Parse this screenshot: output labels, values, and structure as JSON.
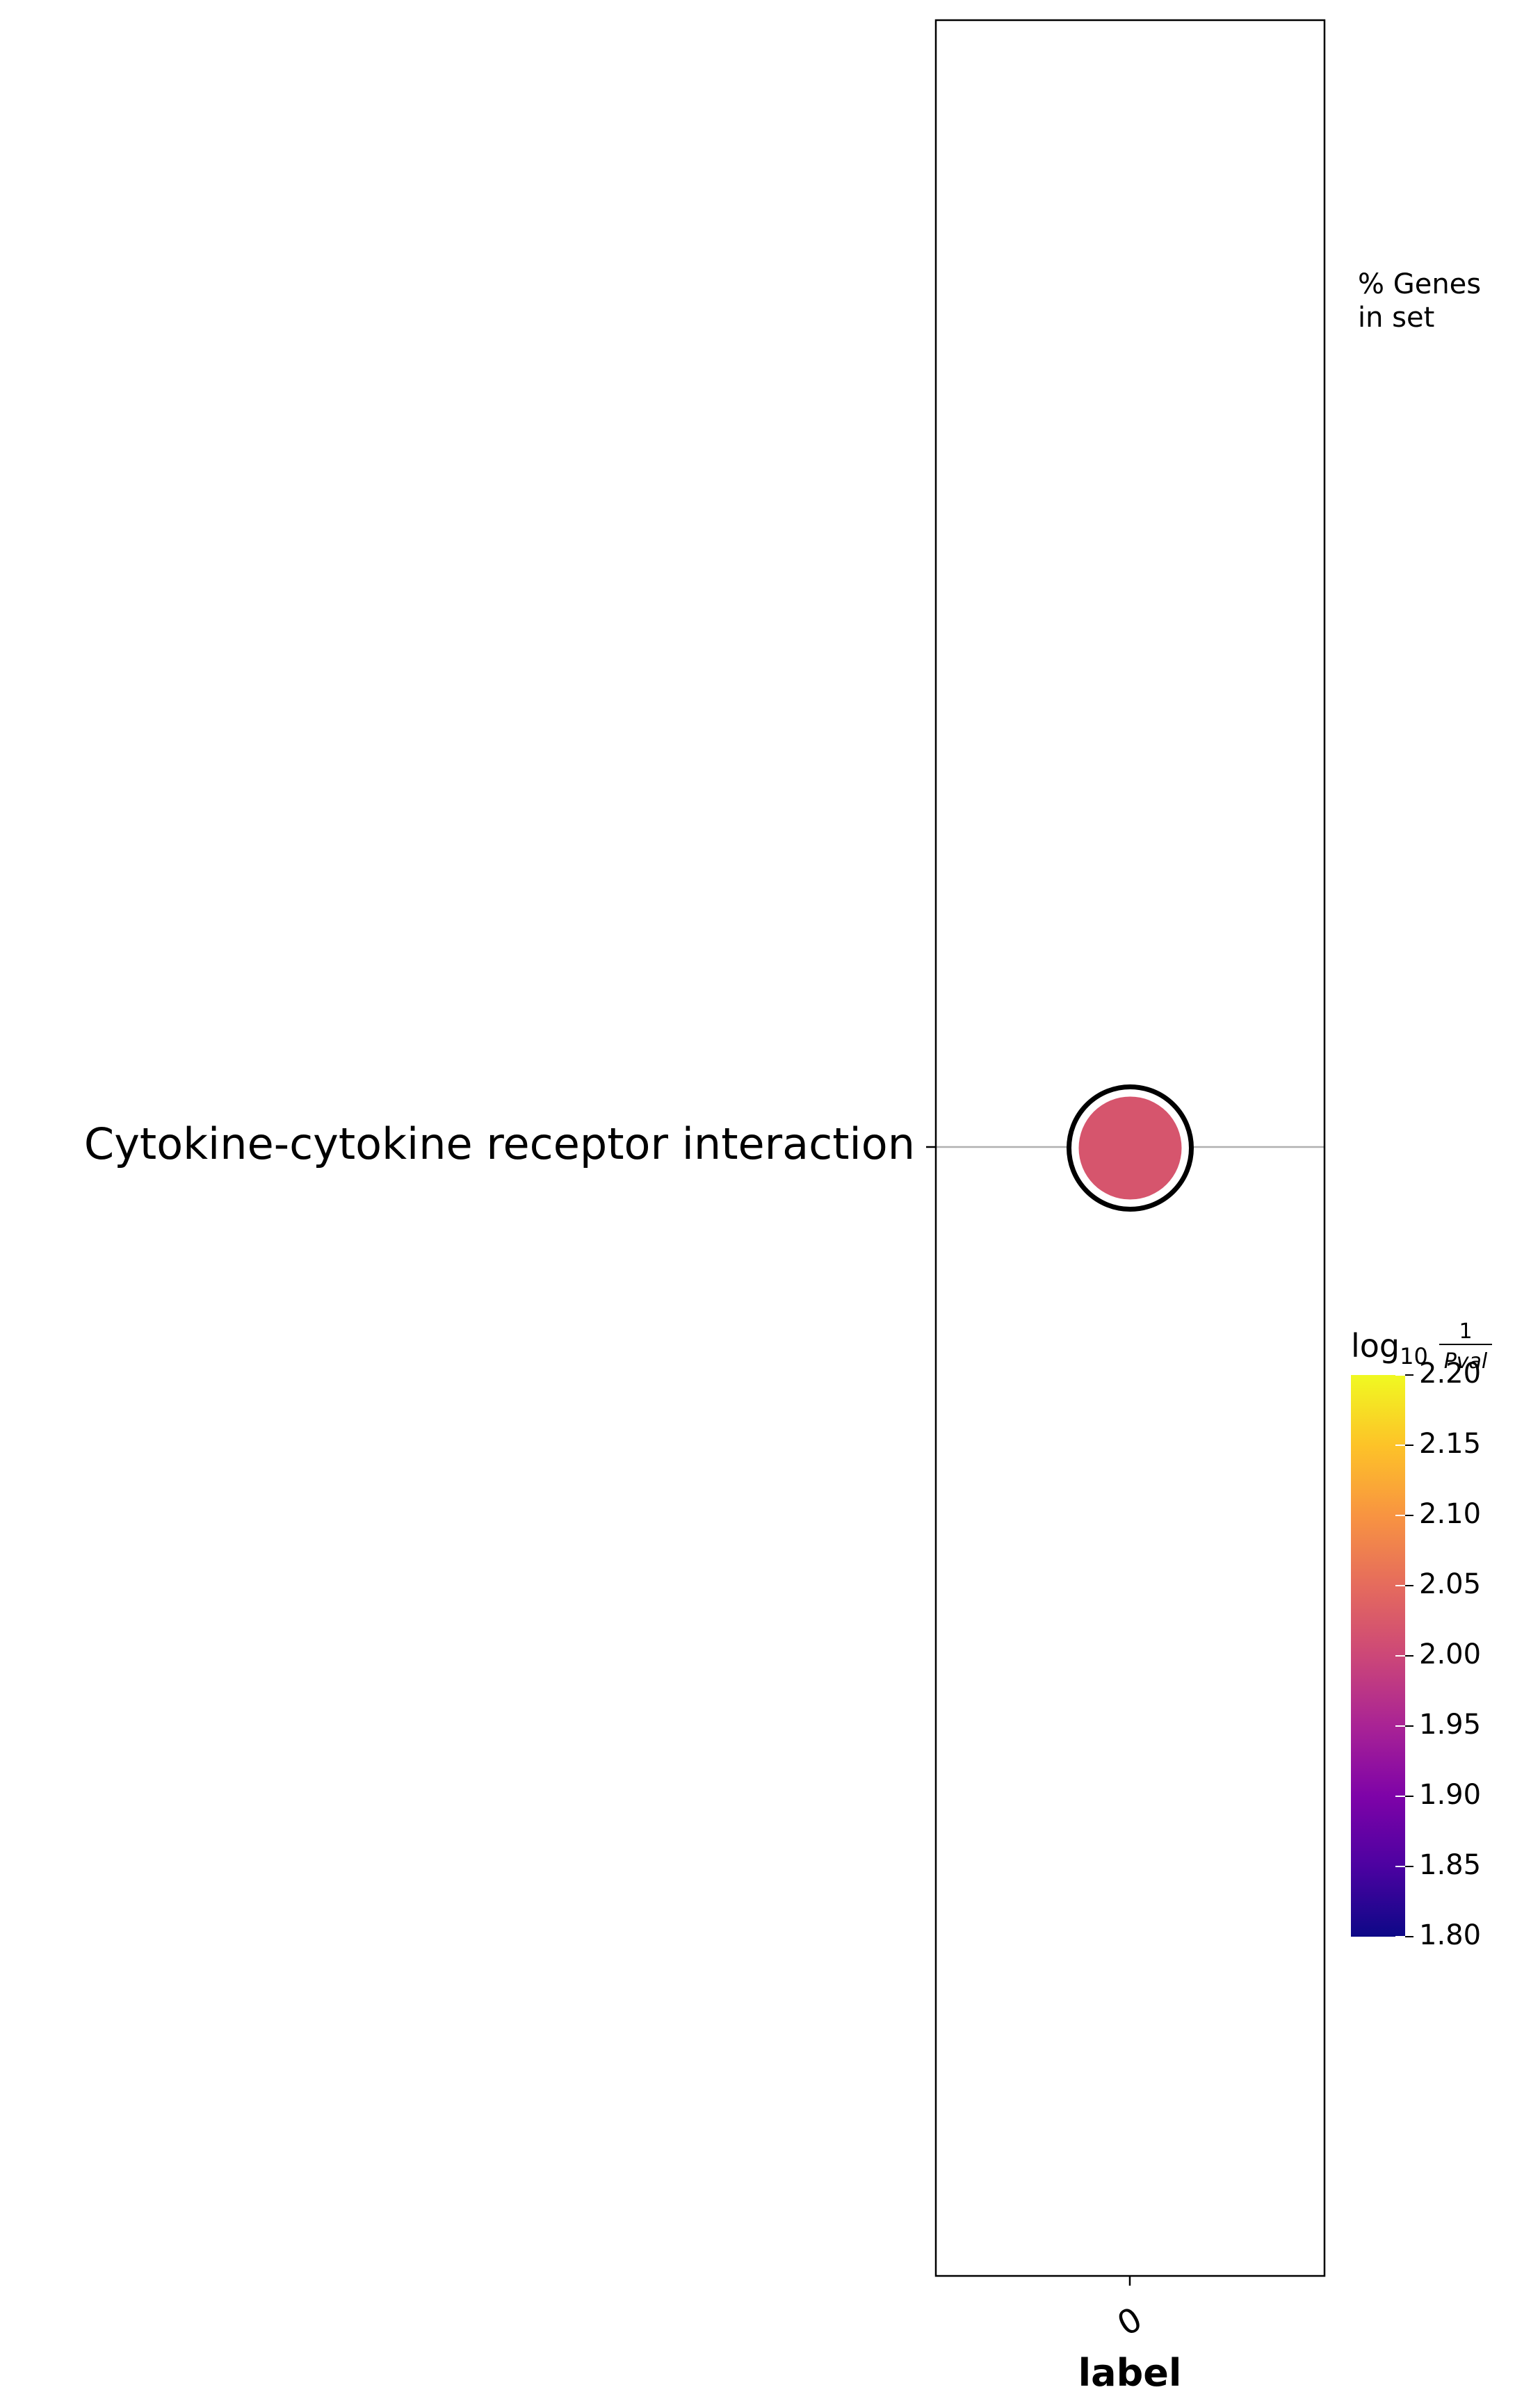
{
  "chart_data": {
    "type": "scatter",
    "xlabel": "label",
    "x_categories": [
      "0"
    ],
    "y_categories": [
      "Cytokine-cytokine receptor interaction"
    ],
    "points": [
      {
        "x": "0",
        "y": "Cytokine-cytokine receptor interaction",
        "color_value": 2.02,
        "highlighted": true
      }
    ],
    "size_legend_title": "% Genes in set",
    "size_legend_title_lines": [
      "% Genes",
      "in set"
    ],
    "colorbar": {
      "title_base": "log",
      "title_sub": "10",
      "title_num": "1",
      "title_den": "Pval",
      "colormap": "plasma",
      "range": [
        1.8,
        2.2
      ],
      "ticks": [
        "2.20",
        "2.15",
        "2.10",
        "2.05",
        "2.00",
        "1.95",
        "1.90",
        "1.85",
        "1.80"
      ]
    },
    "grid": "horizontal line through each row",
    "legend_position": "right"
  }
}
